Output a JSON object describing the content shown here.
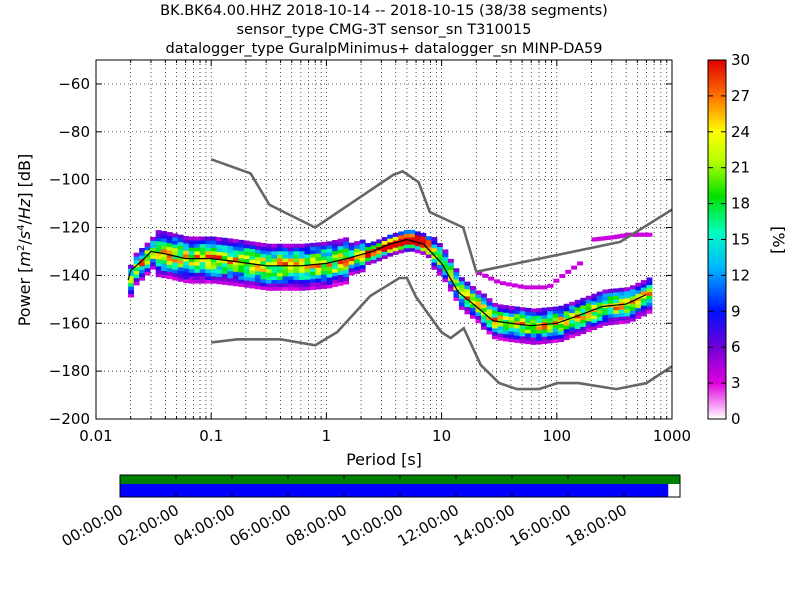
{
  "title": {
    "line1": "BK.BK64.00.HHZ   2018-10-14 -- 2018-10-15  (38/38 segments)",
    "line2": "sensor_type CMG-3T sensor_sn T310015",
    "line3": "datalogger_type GuralpMinimus+ datalogger_sn MINP-DA59"
  },
  "colors": {
    "axis": "#000000",
    "model_line": "#666666",
    "mean_line": "#000000",
    "coverage_data": "#0000ff",
    "coverage_segments": "#008000"
  },
  "chart_data": [
    {
      "type": "heatmap",
      "xlabel": "Period [s]",
      "ylabel": "Power [m^2/s^4/Hz] [dB]",
      "xscale": "log",
      "xlim": [
        0.01,
        1000
      ],
      "ylim": [
        -200,
        -50
      ],
      "x_tick_labels": [
        "0.01",
        "0.1",
        "1",
        "10",
        "100",
        "1000"
      ],
      "y_tick_labels": [
        "−60",
        "−80",
        "−100",
        "−120",
        "−140",
        "−160",
        "−180",
        "−200"
      ],
      "grid": true,
      "colorbar": {
        "label": "[%]",
        "range": [
          0,
          30
        ],
        "tick_labels": [
          "0",
          "3",
          "6",
          "9",
          "12",
          "15",
          "18",
          "21",
          "24",
          "27",
          "30"
        ],
        "colormap": "pqlx (white, magenta, blue, cyan, green, yellow, red)"
      },
      "mean_psd": {
        "period": [
          0.019,
          0.02,
          0.025,
          0.03,
          0.04,
          0.06,
          0.1,
          0.15,
          0.3,
          0.6,
          1.0,
          1.5,
          2.5,
          3.5,
          5,
          7,
          10,
          14,
          20,
          28,
          40,
          60,
          100,
          150,
          250,
          400,
          600
        ],
        "db": [
          -142,
          -138,
          -134,
          -130,
          -131,
          -133,
          -133,
          -134,
          -136,
          -136,
          -135,
          -133,
          -130,
          -127,
          -125,
          -127,
          -135,
          -147,
          -153,
          -159,
          -160,
          -161,
          -160,
          -157,
          -153,
          -152,
          -148
        ]
      },
      "noise_models": [
        {
          "name": "high",
          "period": [
            0.1,
            0.22,
            0.32,
            0.8,
            3.8,
            4.6,
            6.3,
            7.9,
            15.4,
            20,
            354.8,
            1000
          ],
          "db": [
            -91.5,
            -97.4,
            -110.5,
            -120,
            -98,
            -96.5,
            -101,
            -113.5,
            -120,
            -138.5,
            -126,
            -112.5
          ]
        },
        {
          "name": "low",
          "period": [
            0.1,
            0.17,
            0.4,
            0.8,
            1.24,
            2.4,
            4.3,
            5.0,
            6.0,
            10.0,
            12.0,
            15.6,
            21.9,
            31.6,
            45,
            70,
            101,
            154,
            328,
            600,
            1000
          ],
          "db": [
            -168,
            -166.7,
            -166.7,
            -169.2,
            -163.7,
            -148.6,
            -141.1,
            -141.1,
            -149,
            -163.8,
            -166.2,
            -162.1,
            -177.5,
            -185,
            -187.5,
            -187.5,
            -185,
            -185,
            -187.5,
            -185,
            -178
          ]
        }
      ],
      "secondary_modes": [
        {
          "period": [
            20,
            30,
            50,
            80,
            100,
            150
          ],
          "db": [
            -139,
            -143,
            -145,
            -145,
            -141,
            -135
          ]
        },
        {
          "period": [
            200,
            300,
            400,
            600
          ],
          "db": [
            -125,
            -124,
            -123,
            -123
          ]
        }
      ]
    },
    {
      "type": "timeline",
      "time_tick_labels": [
        "00:00:00",
        "02:00:00",
        "04:00:00",
        "06:00:00",
        "08:00:00",
        "10:00:00",
        "12:00:00",
        "14:00:00",
        "16:00:00",
        "18:00:00"
      ],
      "segments_coverage": 1.0,
      "data_coverage": 0.979
    }
  ]
}
